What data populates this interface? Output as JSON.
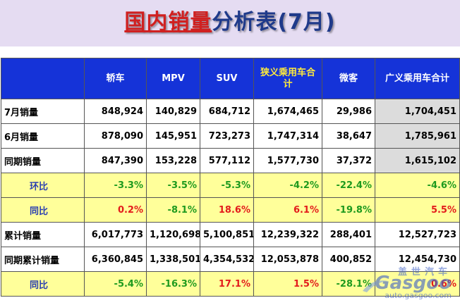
{
  "title": {
    "part1": "国内销量",
    "part2": "分析表(7月)"
  },
  "headers": [
    "",
    "轿车",
    "MPV",
    "SUV",
    "狭义乘用车合计",
    "微客",
    "广义乘用车合计"
  ],
  "rows": [
    {
      "label": "7月销量",
      "cells": [
        "848,924",
        "140,829",
        "684,712",
        "1,674,465",
        "29,986",
        "1,704,451"
      ]
    },
    {
      "label": "6月销量",
      "cells": [
        "878,090",
        "145,951",
        "723,273",
        "1,747,314",
        "38,647",
        "1,785,961"
      ]
    },
    {
      "label": "同期销量",
      "cells": [
        "847,390",
        "153,228",
        "577,112",
        "1,577,730",
        "37,372",
        "1,615,102"
      ]
    },
    {
      "label": "环比",
      "cells": [
        "-3.3%",
        "-3.5%",
        "-5.3%",
        "-4.2%",
        "-22.4%",
        "-4.6%"
      ]
    },
    {
      "label": "同比",
      "cells": [
        "0.2%",
        "-8.1%",
        "18.6%",
        "6.1%",
        "-19.8%",
        "5.5%"
      ]
    },
    {
      "label": "累计销量",
      "cells": [
        "6,017,773",
        "1,120,698",
        "5,100,851",
        "12,239,322",
        "288,401",
        "12,527,723"
      ]
    },
    {
      "label": "同期累计销量",
      "cells": [
        "6,360,845",
        "1,338,501",
        "4,354,532",
        "12,053,878",
        "400,852",
        "12,454,730"
      ]
    },
    {
      "label": "同比",
      "cells": [
        "-5.4%",
        "-16.3%",
        "17.1%",
        "1.5%",
        "-28.1%",
        "0.6%"
      ]
    }
  ],
  "watermark": {
    "cn": "盖世汽车",
    "en": "Gasgoo",
    "url": "auto.gasgoo.com"
  },
  "colors": {
    "header_bg": "#1533d8",
    "header_highlight": "#ffeb3b",
    "yellow_row": "#ffff9a",
    "positive": "#e31b1b",
    "negative": "#1e9a1e"
  }
}
